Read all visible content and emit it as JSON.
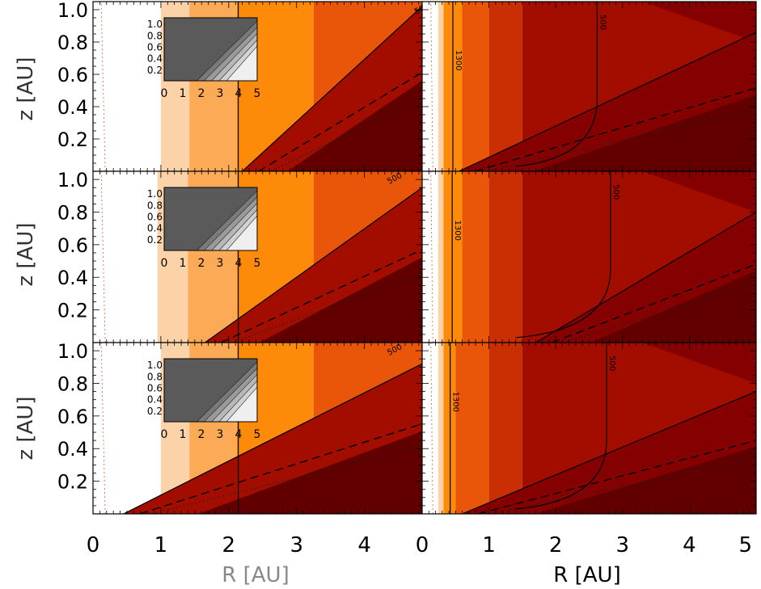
{
  "chart_data": {
    "type": "contour",
    "layout": "3 rows x 2 columns of filled-contour panels sharing axes",
    "x": {
      "label": "R [AU]",
      "left_ticks": [
        "0",
        "1",
        "2",
        "3",
        "4"
      ],
      "right_ticks": [
        "0",
        "1",
        "2",
        "3",
        "4",
        "5"
      ],
      "left_range": [
        0,
        4.85
      ],
      "right_range": [
        0,
        5
      ]
    },
    "y": {
      "label": "z [AU]",
      "ticks": [
        "0.2",
        "0.4",
        "0.6",
        "0.8",
        "1.0"
      ],
      "range": [
        0,
        1.05
      ]
    },
    "inset": {
      "x_ticks": [
        "0",
        "1",
        "2",
        "3",
        "4",
        "5"
      ],
      "y_ticks": [
        "0.2",
        "0.4",
        "0.6",
        "0.8",
        "1.0"
      ],
      "x_range": [
        0,
        5
      ],
      "y_range": [
        0,
        1.1
      ]
    },
    "contour_labels": {
      "left": "500",
      "right_top": "500",
      "right_mid": "500",
      "right_bottom": "500",
      "right_column_edge": "1300"
    },
    "colors": {
      "levels": [
        "#ffffff",
        "#fcd3a8",
        "#fdaa57",
        "#fe8a0a",
        "#e95509",
        "#c92f03",
        "#a30d00",
        "#850000",
        "#620000"
      ],
      "inset_dark": "#5a5a5a",
      "inset_light": "#efefef"
    },
    "panels": [
      {
        "row": 1,
        "column": "left",
        "white_edge": 1.0,
        "orange_edge": 1.42,
        "iso_1300": 2.14,
        "iso_500_top": 5.0,
        "surface_start": 2.2,
        "surface_end_z": 1.02
      },
      {
        "row": 1,
        "column": "right",
        "white_edge": 0.34,
        "orange_edge": 0.6,
        "iso_1300": 0.46,
        "iso_500": 2.62,
        "surface_start": 0.55,
        "surface_end_z": 0.86
      },
      {
        "row": 2,
        "column": "left",
        "white_edge": 0.95,
        "orange_edge": 1.4,
        "iso_1300": 2.14,
        "iso_500_top": 4.6,
        "surface_start": 1.65,
        "surface_end_z": 0.95
      },
      {
        "row": 2,
        "column": "right",
        "white_edge": 0.36,
        "orange_edge": 0.6,
        "iso_1300": 0.45,
        "iso_500": 2.82,
        "surface_start": 1.7,
        "surface_end_z": 0.8
      },
      {
        "row": 3,
        "column": "left",
        "white_edge": 1.0,
        "orange_edge": 1.42,
        "iso_1300": 2.14,
        "iso_500_top": 4.6,
        "surface_start": 0.45,
        "surface_end_z": 0.92
      },
      {
        "row": 3,
        "column": "right",
        "white_edge": 0.3,
        "orange_edge": 0.5,
        "iso_1300": 0.42,
        "iso_500": 2.76,
        "surface_start": 0.6,
        "surface_end_z": 0.75
      }
    ]
  }
}
